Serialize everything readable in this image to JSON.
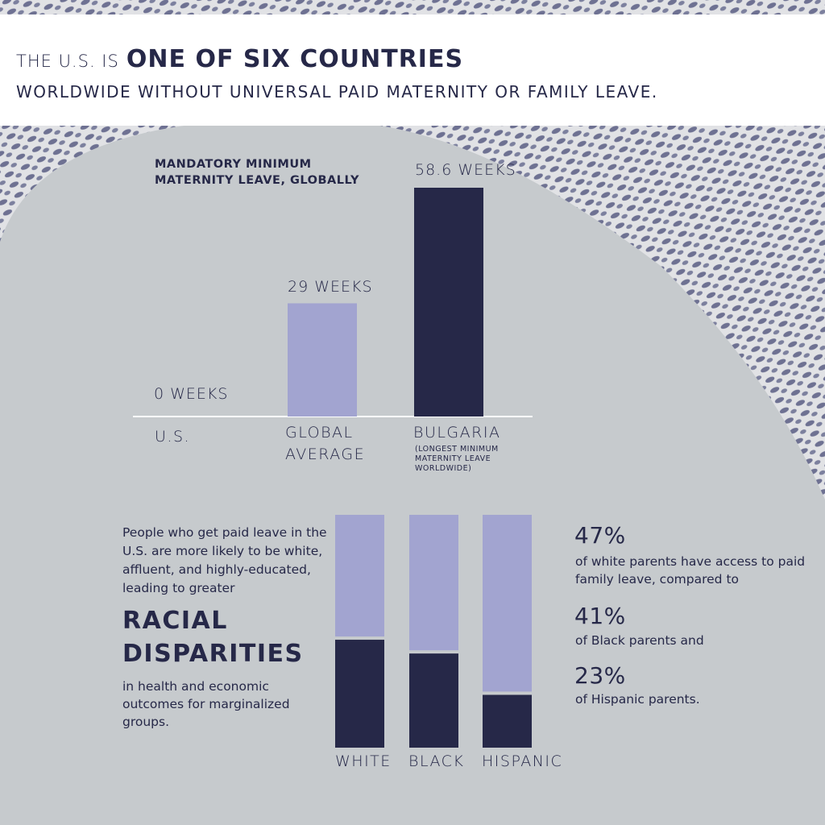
{
  "header": {
    "lead": "THE U.S. IS",
    "strong": "ONE OF SIX COUNTRIES",
    "subtitle": "WORLDWIDE WITHOUT UNIVERSAL PAID MATERNITY OR FAMILY LEAVE."
  },
  "colors": {
    "background": "#c6cacd",
    "dark": "#262848",
    "light": "#a2a4d0",
    "header_bg": "#ffffff"
  },
  "chart_data": [
    {
      "type": "bar",
      "title": "MANDATORY MINIMUM MATERNITY LEAVE, GLOBALLY",
      "categories": [
        "U.S.",
        "GLOBAL AVERAGE",
        "BULGARIA"
      ],
      "values": [
        0,
        29,
        58.6
      ],
      "value_labels": [
        "0 WEEKS",
        "29 WEEKS",
        "58.6 WEEKS"
      ],
      "unit": "weeks",
      "note": "(LONGEST MINIMUM MATERNITY LEAVE WORLDWIDE)",
      "ylim": [
        0,
        58.6
      ],
      "grid": false
    },
    {
      "type": "bar",
      "title": "",
      "categories": [
        "WHITE",
        "BLACK",
        "HISPANIC"
      ],
      "values": [
        47,
        41,
        23
      ],
      "value_labels": [
        "47%",
        "41%",
        "23%"
      ],
      "unit": "percent of parents with access to paid family leave",
      "ylim": [
        0,
        100
      ],
      "grid": false
    }
  ],
  "racial": {
    "intro": "People who get paid leave in the U.S. are more likely to be white, affluent, and highly-educated, leading to greater",
    "strong_line1": "RACIAL",
    "strong_line2": "DISPARITIES",
    "outro": "in health and economic outcomes for marginalized groups.",
    "stats": [
      {
        "pct": "47%",
        "text": "of white parents have access to paid family leave, compared to"
      },
      {
        "pct": "41%",
        "text": "of Black parents and"
      },
      {
        "pct": "23%",
        "text": "of Hispanic parents."
      }
    ]
  }
}
